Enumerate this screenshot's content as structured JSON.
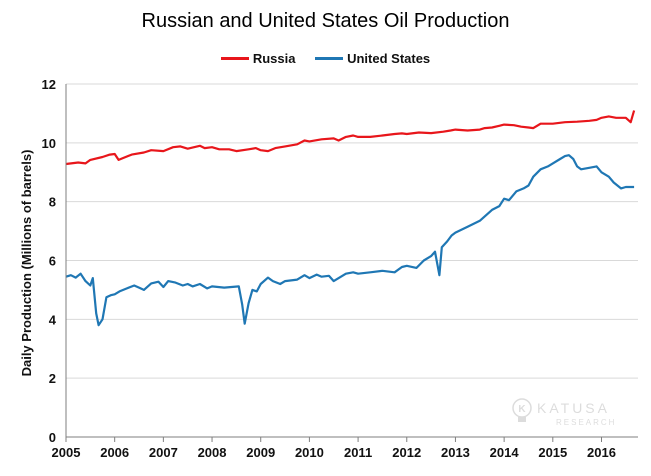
{
  "colors": {
    "russia": "#e8161b",
    "united_states": "#1f77b4",
    "grid": "#d9d9d9",
    "axis": "#7f7f7f"
  },
  "watermark": {
    "line1": "KATUSA",
    "line2": "RESEARCH",
    "icon": "lightbulb-k-icon"
  },
  "chart_data": {
    "type": "line",
    "title": "Russian and United States Oil Production",
    "xlabel": "",
    "ylabel": "Daily Production (Millions of barrels)",
    "xlim": [
      2005,
      2016.75
    ],
    "ylim": [
      0,
      12
    ],
    "yticks": [
      0,
      2,
      4,
      6,
      8,
      10,
      12
    ],
    "xticks": [
      "2005",
      "2006",
      "2007",
      "2008",
      "2009",
      "2010",
      "2011",
      "2012",
      "2013",
      "2014",
      "2015",
      "2016"
    ],
    "grid": "horizontal",
    "legend_position": "top",
    "series": [
      {
        "name": "Russia",
        "color": "#e8161b",
        "points": [
          [
            2005.0,
            9.28
          ],
          [
            2005.25,
            9.33
          ],
          [
            2005.4,
            9.3
          ],
          [
            2005.5,
            9.42
          ],
          [
            2005.75,
            9.52
          ],
          [
            2005.9,
            9.6
          ],
          [
            2006.0,
            9.62
          ],
          [
            2006.08,
            9.42
          ],
          [
            2006.2,
            9.5
          ],
          [
            2006.35,
            9.6
          ],
          [
            2006.6,
            9.67
          ],
          [
            2006.75,
            9.75
          ],
          [
            2007.0,
            9.72
          ],
          [
            2007.2,
            9.85
          ],
          [
            2007.35,
            9.88
          ],
          [
            2007.5,
            9.8
          ],
          [
            2007.75,
            9.9
          ],
          [
            2007.85,
            9.82
          ],
          [
            2008.0,
            9.85
          ],
          [
            2008.15,
            9.78
          ],
          [
            2008.35,
            9.78
          ],
          [
            2008.5,
            9.72
          ],
          [
            2008.75,
            9.78
          ],
          [
            2008.9,
            9.82
          ],
          [
            2009.0,
            9.75
          ],
          [
            2009.15,
            9.72
          ],
          [
            2009.3,
            9.82
          ],
          [
            2009.5,
            9.88
          ],
          [
            2009.75,
            9.95
          ],
          [
            2009.9,
            10.08
          ],
          [
            2010.0,
            10.05
          ],
          [
            2010.25,
            10.12
          ],
          [
            2010.5,
            10.15
          ],
          [
            2010.6,
            10.08
          ],
          [
            2010.75,
            10.2
          ],
          [
            2010.9,
            10.25
          ],
          [
            2011.0,
            10.2
          ],
          [
            2011.25,
            10.2
          ],
          [
            2011.5,
            10.25
          ],
          [
            2011.75,
            10.3
          ],
          [
            2011.9,
            10.32
          ],
          [
            2012.0,
            10.3
          ],
          [
            2012.25,
            10.35
          ],
          [
            2012.5,
            10.33
          ],
          [
            2012.75,
            10.38
          ],
          [
            2012.9,
            10.42
          ],
          [
            2013.0,
            10.45
          ],
          [
            2013.25,
            10.42
          ],
          [
            2013.5,
            10.45
          ],
          [
            2013.6,
            10.5
          ],
          [
            2013.75,
            10.52
          ],
          [
            2013.9,
            10.58
          ],
          [
            2014.0,
            10.62
          ],
          [
            2014.2,
            10.6
          ],
          [
            2014.35,
            10.55
          ],
          [
            2014.5,
            10.52
          ],
          [
            2014.6,
            10.5
          ],
          [
            2014.75,
            10.65
          ],
          [
            2015.0,
            10.65
          ],
          [
            2015.25,
            10.7
          ],
          [
            2015.5,
            10.72
          ],
          [
            2015.75,
            10.75
          ],
          [
            2015.9,
            10.78
          ],
          [
            2016.0,
            10.85
          ],
          [
            2016.15,
            10.9
          ],
          [
            2016.3,
            10.85
          ],
          [
            2016.5,
            10.85
          ],
          [
            2016.6,
            10.7
          ],
          [
            2016.67,
            11.1
          ]
        ]
      },
      {
        "name": "United States",
        "color": "#1f77b4",
        "points": [
          [
            2005.0,
            5.45
          ],
          [
            2005.1,
            5.5
          ],
          [
            2005.2,
            5.42
          ],
          [
            2005.3,
            5.55
          ],
          [
            2005.4,
            5.3
          ],
          [
            2005.5,
            5.15
          ],
          [
            2005.55,
            5.4
          ],
          [
            2005.62,
            4.2
          ],
          [
            2005.67,
            3.8
          ],
          [
            2005.75,
            4.0
          ],
          [
            2005.83,
            4.75
          ],
          [
            2005.92,
            4.82
          ],
          [
            2006.0,
            4.85
          ],
          [
            2006.1,
            4.95
          ],
          [
            2006.25,
            5.05
          ],
          [
            2006.4,
            5.15
          ],
          [
            2006.5,
            5.08
          ],
          [
            2006.6,
            5.0
          ],
          [
            2006.75,
            5.22
          ],
          [
            2006.9,
            5.28
          ],
          [
            2007.0,
            5.1
          ],
          [
            2007.1,
            5.3
          ],
          [
            2007.25,
            5.25
          ],
          [
            2007.4,
            5.15
          ],
          [
            2007.5,
            5.2
          ],
          [
            2007.6,
            5.12
          ],
          [
            2007.75,
            5.2
          ],
          [
            2007.9,
            5.05
          ],
          [
            2008.0,
            5.12
          ],
          [
            2008.25,
            5.08
          ],
          [
            2008.4,
            5.1
          ],
          [
            2008.55,
            5.12
          ],
          [
            2008.62,
            4.5
          ],
          [
            2008.67,
            3.85
          ],
          [
            2008.75,
            4.55
          ],
          [
            2008.83,
            5.0
          ],
          [
            2008.92,
            4.95
          ],
          [
            2009.0,
            5.2
          ],
          [
            2009.15,
            5.42
          ],
          [
            2009.25,
            5.3
          ],
          [
            2009.4,
            5.2
          ],
          [
            2009.5,
            5.3
          ],
          [
            2009.75,
            5.35
          ],
          [
            2009.9,
            5.5
          ],
          [
            2010.0,
            5.4
          ],
          [
            2010.15,
            5.52
          ],
          [
            2010.25,
            5.45
          ],
          [
            2010.4,
            5.48
          ],
          [
            2010.5,
            5.3
          ],
          [
            2010.75,
            5.55
          ],
          [
            2010.9,
            5.6
          ],
          [
            2011.0,
            5.55
          ],
          [
            2011.25,
            5.6
          ],
          [
            2011.5,
            5.65
          ],
          [
            2011.75,
            5.6
          ],
          [
            2011.9,
            5.78
          ],
          [
            2012.0,
            5.82
          ],
          [
            2012.2,
            5.75
          ],
          [
            2012.35,
            6.0
          ],
          [
            2012.5,
            6.15
          ],
          [
            2012.58,
            6.3
          ],
          [
            2012.67,
            5.5
          ],
          [
            2012.72,
            6.45
          ],
          [
            2012.83,
            6.65
          ],
          [
            2012.92,
            6.85
          ],
          [
            2013.0,
            6.95
          ],
          [
            2013.25,
            7.15
          ],
          [
            2013.5,
            7.35
          ],
          [
            2013.6,
            7.5
          ],
          [
            2013.75,
            7.72
          ],
          [
            2013.9,
            7.85
          ],
          [
            2014.0,
            8.1
          ],
          [
            2014.1,
            8.05
          ],
          [
            2014.25,
            8.35
          ],
          [
            2014.4,
            8.45
          ],
          [
            2014.5,
            8.55
          ],
          [
            2014.6,
            8.85
          ],
          [
            2014.75,
            9.1
          ],
          [
            2014.9,
            9.2
          ],
          [
            2015.0,
            9.3
          ],
          [
            2015.15,
            9.45
          ],
          [
            2015.25,
            9.55
          ],
          [
            2015.33,
            9.58
          ],
          [
            2015.42,
            9.45
          ],
          [
            2015.5,
            9.2
          ],
          [
            2015.58,
            9.1
          ],
          [
            2015.75,
            9.15
          ],
          [
            2015.9,
            9.2
          ],
          [
            2016.0,
            9.0
          ],
          [
            2016.15,
            8.85
          ],
          [
            2016.25,
            8.65
          ],
          [
            2016.4,
            8.45
          ],
          [
            2016.5,
            8.5
          ],
          [
            2016.67,
            8.5
          ]
        ]
      }
    ]
  }
}
